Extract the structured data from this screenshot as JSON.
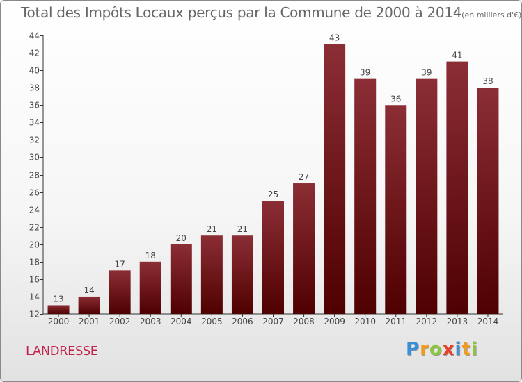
{
  "title": "Total des Impôts Locaux perçus par la Commune de 2000 à 2014",
  "unit": "(en milliers d'€)",
  "commune": "LANDRESSE",
  "logo": {
    "letters": [
      {
        "ch": "P",
        "color": "#3a8fd6"
      },
      {
        "ch": "r",
        "color": "#f39a1e"
      },
      {
        "ch": "o",
        "color": "#8cc63f"
      },
      {
        "ch": "x",
        "color": "#e8412a"
      },
      {
        "ch": "i",
        "color": "#3a8fd6"
      },
      {
        "ch": "t",
        "color": "#f39a1e"
      },
      {
        "ch": "i",
        "color": "#8cc63f"
      }
    ]
  },
  "chart_data": {
    "type": "bar",
    "categories": [
      "2000",
      "2001",
      "2002",
      "2003",
      "2004",
      "2005",
      "2006",
      "2007",
      "2008",
      "2009",
      "2010",
      "2011",
      "2012",
      "2013",
      "2014"
    ],
    "values": [
      13,
      14,
      17,
      18,
      20,
      21,
      21,
      25,
      27,
      43,
      39,
      36,
      39,
      41,
      38
    ],
    "ylim": [
      12,
      44
    ],
    "yticks": [
      12,
      14,
      16,
      18,
      20,
      22,
      24,
      26,
      28,
      30,
      32,
      34,
      36,
      38,
      40,
      42,
      44
    ],
    "grid": false,
    "legend": "none",
    "bar_color_top": "#8b2e35",
    "bar_color_bottom": "#4f0000"
  }
}
